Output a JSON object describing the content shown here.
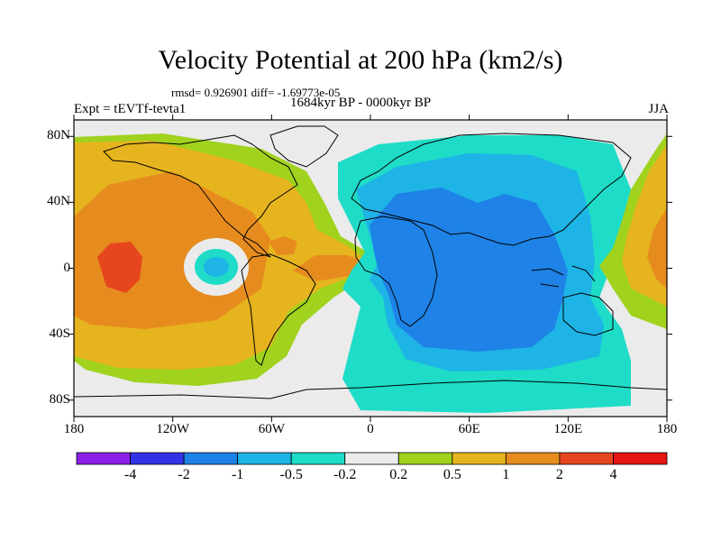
{
  "title": "Velocity Potential at 200 hPa (km2/s)",
  "stats": "rmsd= 0.926901 diff= -1.69773e-05",
  "experiment": "Expt = tEVTf-tevta1",
  "period": "1684kyr BP - 0000kyr BP",
  "season": "JJA",
  "map_data": {
    "projection": "cylindrical-equidistant",
    "lon_range": [
      -180,
      180
    ],
    "lat_range": [
      -90,
      90
    ],
    "lat_ticks": [
      "80N",
      "40N",
      "0",
      "40S",
      "80S"
    ],
    "lat_tick_values": [
      80,
      40,
      0,
      -40,
      -80
    ],
    "lon_ticks": [
      "180",
      "120W",
      "60W",
      "0",
      "60E",
      "120E",
      "180"
    ],
    "lon_tick_values": [
      -180,
      -120,
      -60,
      0,
      60,
      120,
      180
    ],
    "colorbar": {
      "labels": [
        "-4",
        "-2",
        "-1",
        "-0.5",
        "-0.2",
        "0.2",
        "0.5",
        "1",
        "2",
        "4"
      ],
      "colors": [
        "#8c1ee6",
        "#3232e6",
        "#1e82e6",
        "#1eb4e6",
        "#1edcc8",
        "#ebebeb",
        "#a0d21e",
        "#e6b41e",
        "#e68c1e",
        "#e6461e",
        "#e61414"
      ]
    },
    "features": [
      {
        "name": "positive-anomaly-pacific-americas",
        "level": "1 to 2",
        "center_lon": -150,
        "center_lat": 0
      },
      {
        "name": "negative-anomaly-africa-indian-ocean",
        "level": "-1 to -2",
        "center_lon": 50,
        "center_lat": 10
      },
      {
        "name": "small-negative-cell-east-pacific",
        "level": "-0.5 to -1",
        "center_lon": -95,
        "center_lat": -2
      }
    ]
  }
}
